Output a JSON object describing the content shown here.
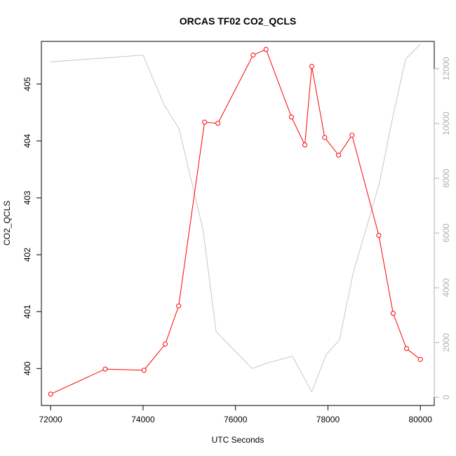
{
  "chart_data": {
    "type": "line",
    "title": "ORCAS TF02 CO2_QCLS",
    "xlabel": "UTC Seconds",
    "ylabel": "CO2_QCLS",
    "xlim": [
      71800,
      80300
    ],
    "ylim": [
      399.35,
      405.75
    ],
    "y2lim": [
      -300,
      13000
    ],
    "x_ticks": [
      72000,
      74000,
      76000,
      78000,
      80000
    ],
    "y_ticks": [
      400,
      401,
      402,
      403,
      404,
      405
    ],
    "y2_ticks": [
      0,
      2000,
      4000,
      6000,
      8000,
      10000,
      12000
    ],
    "grid": false,
    "series": [
      {
        "axis": "left",
        "color": "#ff0000",
        "marker": "open-circle",
        "x": [
          72000,
          73180,
          74020,
          74480,
          74770,
          75330,
          75620,
          76380,
          76660,
          77210,
          77500,
          77650,
          77930,
          78230,
          78520,
          79100,
          79410,
          79700,
          80000
        ],
        "y": [
          399.55,
          399.99,
          399.97,
          400.43,
          401.1,
          404.33,
          404.31,
          405.51,
          405.61,
          404.42,
          403.93,
          405.31,
          404.06,
          403.75,
          404.1,
          402.34,
          400.97,
          400.35,
          400.16
        ]
      },
      {
        "axis": "right",
        "color": "#c8c8c8",
        "marker": "none",
        "x": [
          72000,
          74000,
          74450,
          74780,
          75300,
          75580,
          76360,
          76680,
          77230,
          77650,
          77960,
          78250,
          78540,
          79110,
          79410,
          79680,
          80000
        ],
        "y": [
          12250,
          12500,
          10700,
          9800,
          6100,
          2400,
          1050,
          1250,
          1500,
          200,
          1550,
          2100,
          4500,
          7800,
          10300,
          12350,
          12900
        ]
      }
    ]
  }
}
